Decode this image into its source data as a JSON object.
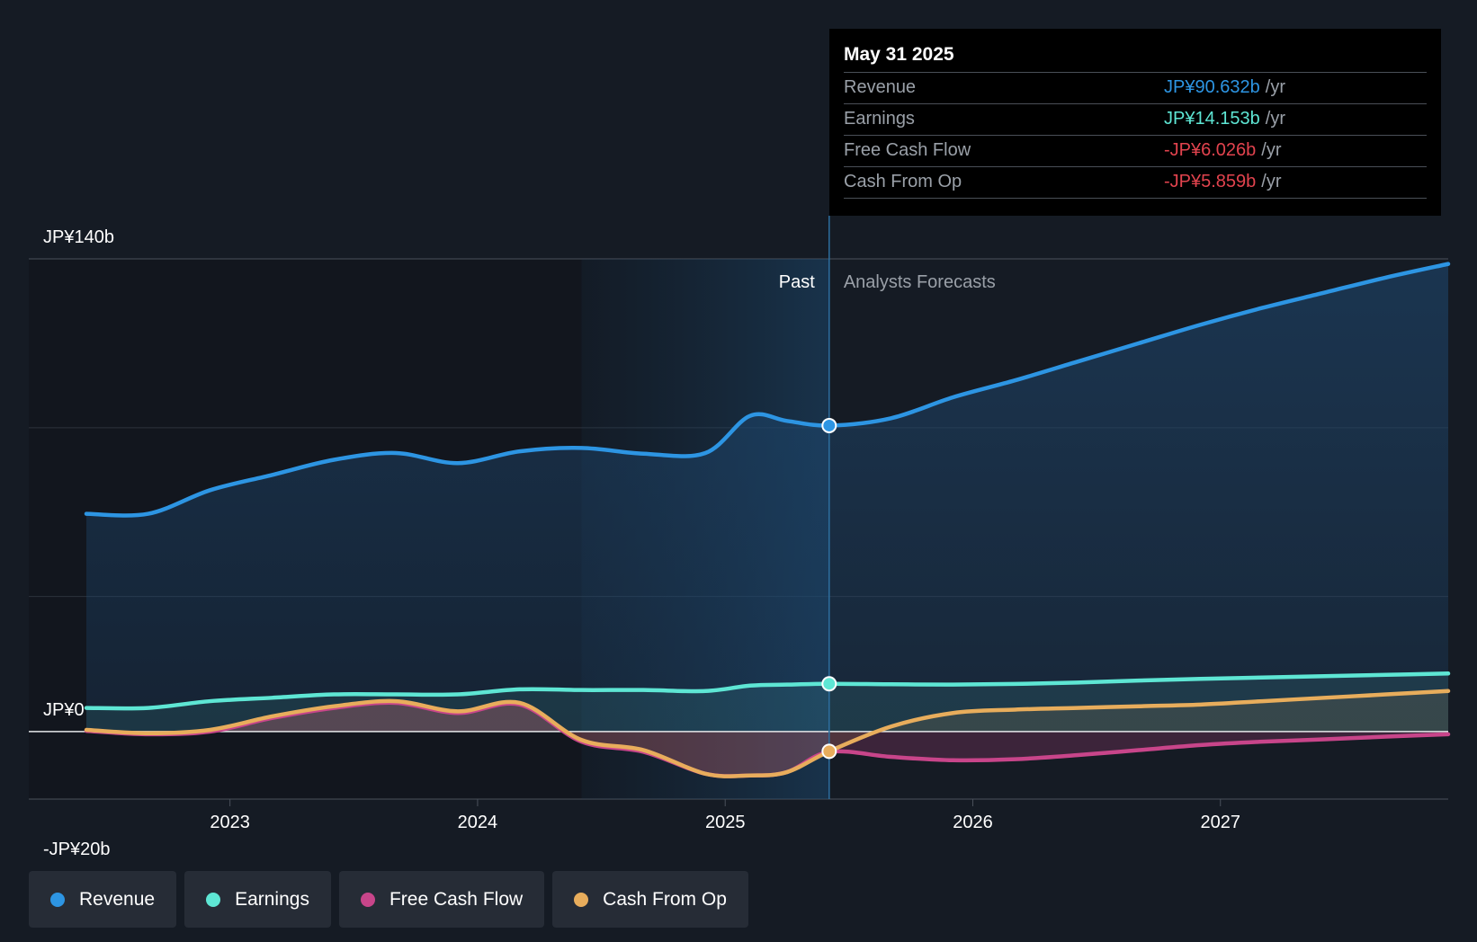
{
  "chart_data": {
    "type": "line",
    "x_ticks": [
      "2023",
      "2024",
      "2025",
      "2026",
      "2027"
    ],
    "y_labels": [
      "JP¥140b",
      "JP¥0",
      "-JP¥20b"
    ],
    "ylim": [
      -20,
      140
    ],
    "xlim": [
      2022.42,
      2027.92
    ],
    "divider_x": 2025.42,
    "past_shade_start": 2024.42,
    "past_label": "Past",
    "forecast_label": "Analysts Forecasts",
    "series": [
      {
        "name": "Revenue",
        "color": "#2d95e3",
        "x": [
          2022.42,
          2022.67,
          2022.92,
          2023.17,
          2023.42,
          2023.67,
          2023.92,
          2024.17,
          2024.42,
          2024.67,
          2024.92,
          2025.1,
          2025.25,
          2025.42,
          2025.67,
          2025.92,
          2026.17,
          2026.42,
          2026.67,
          2026.92,
          2027.17,
          2027.42,
          2027.67,
          2027.92
        ],
        "y": [
          64.5,
          64.5,
          71.5,
          76,
          80.5,
          82.5,
          79.5,
          83,
          84,
          82.3,
          82.5,
          93.5,
          92,
          90.632,
          92.8,
          99,
          104,
          109.5,
          115,
          120.5,
          125.5,
          130,
          134.5,
          138.5
        ]
      },
      {
        "name": "Earnings",
        "color": "#5ee6d4",
        "x": [
          2022.42,
          2022.67,
          2022.92,
          2023.17,
          2023.42,
          2023.67,
          2023.92,
          2024.17,
          2024.42,
          2024.67,
          2024.92,
          2025.1,
          2025.25,
          2025.42,
          2025.67,
          2025.92,
          2026.17,
          2026.42,
          2026.67,
          2026.92,
          2027.17,
          2027.42,
          2027.67,
          2027.92
        ],
        "y": [
          7,
          7,
          9,
          10,
          11,
          11,
          11,
          12.5,
          12.3,
          12.3,
          12,
          13.6,
          13.9,
          14.153,
          14,
          13.9,
          14.1,
          14.5,
          15.1,
          15.6,
          16,
          16.4,
          16.8,
          17.2
        ]
      },
      {
        "name": "Free Cash Flow",
        "color": "#c8458a",
        "x": [
          2022.42,
          2022.67,
          2022.92,
          2023.17,
          2023.42,
          2023.67,
          2023.92,
          2024.17,
          2024.42,
          2024.67,
          2024.92,
          2025.1,
          2025.25,
          2025.42,
          2025.67,
          2025.92,
          2026.17,
          2026.42,
          2026.67,
          2026.92,
          2027.17,
          2027.42,
          2027.67,
          2027.92
        ],
        "y": [
          0.2,
          -0.8,
          0,
          4,
          7,
          8.5,
          5.5,
          8,
          -3,
          -6,
          -12.5,
          -13,
          -12,
          -6.026,
          -7.5,
          -8.5,
          -8.2,
          -7,
          -5.5,
          -4,
          -3,
          -2.3,
          -1.5,
          -0.8
        ]
      },
      {
        "name": "Cash From Op",
        "color": "#e8ad5c",
        "x": [
          2022.42,
          2022.67,
          2022.92,
          2023.17,
          2023.42,
          2023.67,
          2023.92,
          2024.17,
          2024.42,
          2024.67,
          2024.92,
          2025.1,
          2025.25,
          2025.42,
          2025.67,
          2025.92,
          2026.17,
          2026.42,
          2026.67,
          2026.92,
          2027.17,
          2027.42,
          2027.67,
          2027.92
        ],
        "y": [
          0.5,
          -0.5,
          0.5,
          4.5,
          7.5,
          9,
          6,
          8.5,
          -2.5,
          -5.5,
          -12.5,
          -13,
          -12,
          -5.859,
          1.5,
          5.5,
          6.5,
          7,
          7.5,
          8,
          9,
          10,
          11,
          12
        ]
      }
    ],
    "tooltip": {
      "date": "May 31 2025",
      "rows": [
        {
          "name": "Revenue",
          "value": "JP¥90.632b",
          "unit": "/yr",
          "color": "#2d95e3"
        },
        {
          "name": "Earnings",
          "value": "JP¥14.153b",
          "unit": "/yr",
          "color": "#5ee6d4"
        },
        {
          "name": "Free Cash Flow",
          "value": "-JP¥6.026b",
          "unit": "/yr",
          "color": "#e2434e"
        },
        {
          "name": "Cash From Op",
          "value": "-JP¥5.859b",
          "unit": "/yr",
          "color": "#e2434e"
        }
      ]
    },
    "legend": [
      {
        "name": "Revenue",
        "color": "#2d95e3"
      },
      {
        "name": "Earnings",
        "color": "#5ee6d4"
      },
      {
        "name": "Free Cash Flow",
        "color": "#c8458a"
      },
      {
        "name": "Cash From Op",
        "color": "#e8ad5c"
      }
    ]
  }
}
